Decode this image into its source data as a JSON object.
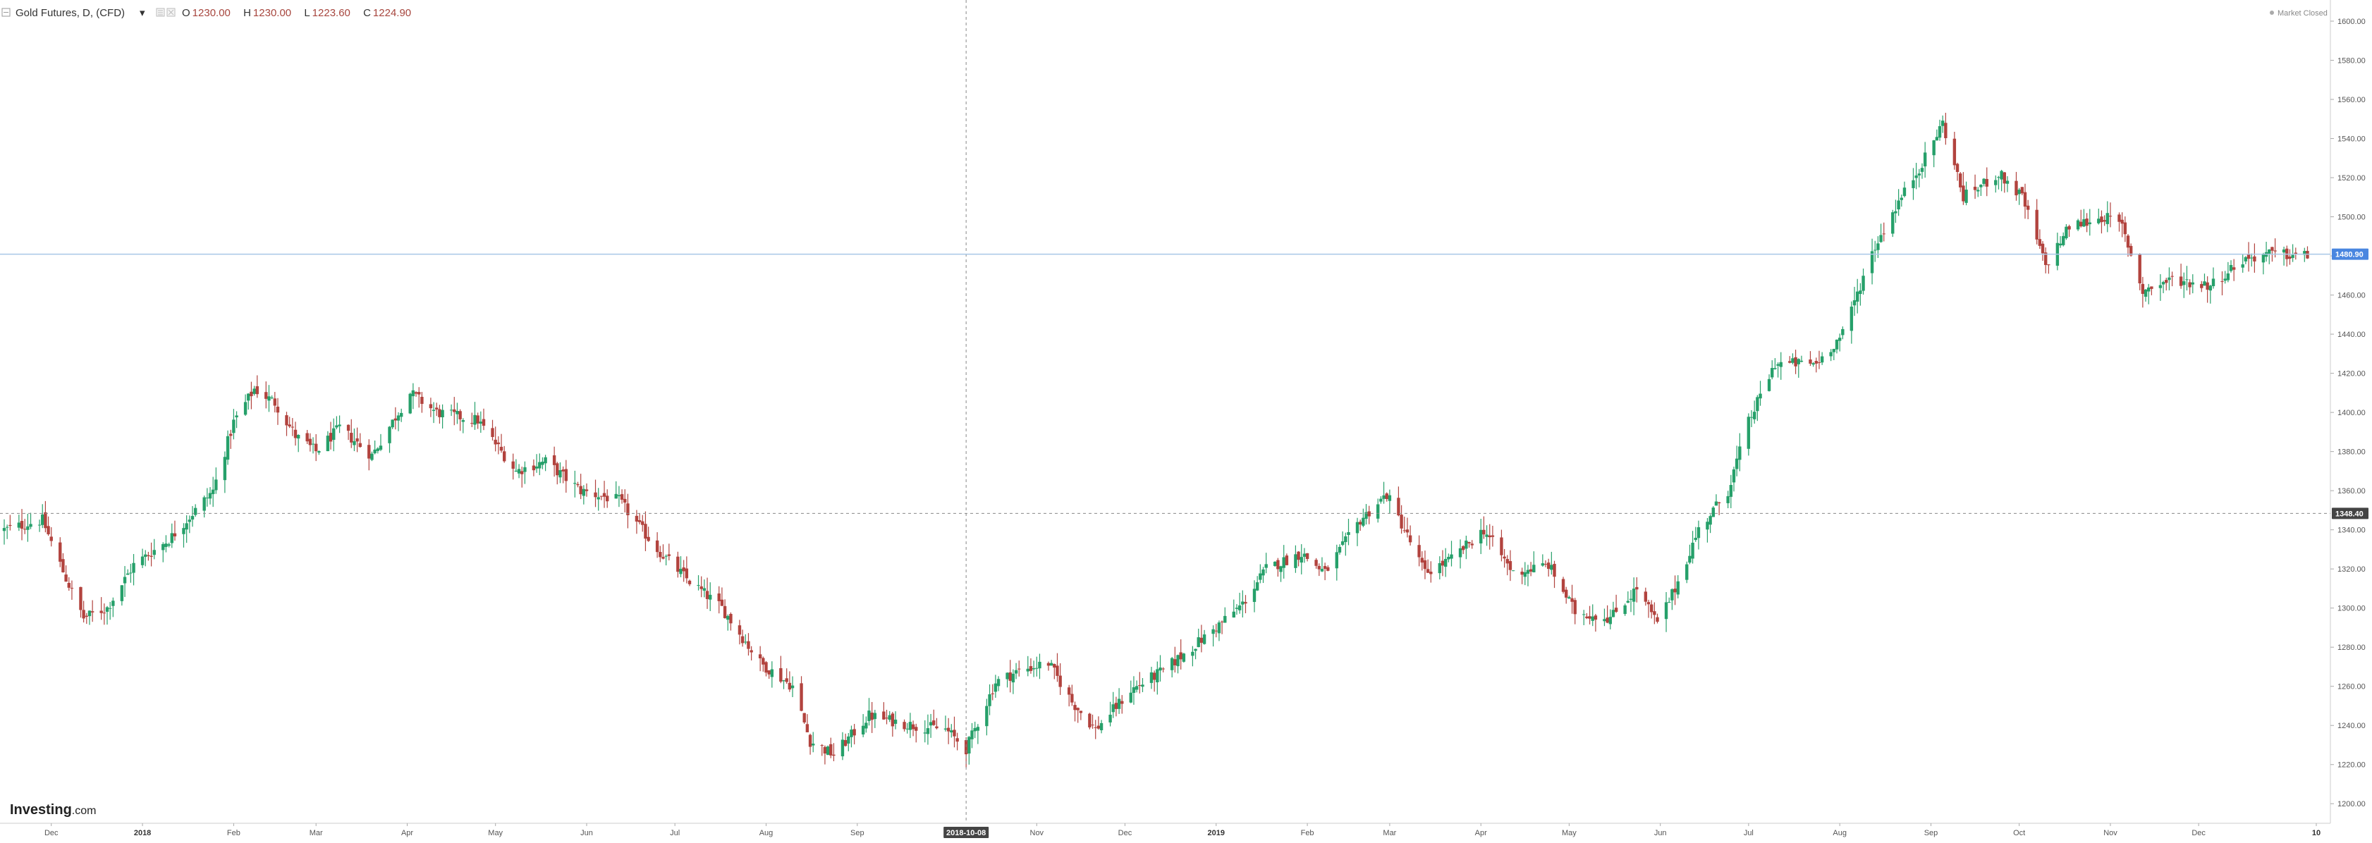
{
  "header": {
    "symbol": "Gold Futures, D, (CFD)",
    "open_label": "O",
    "open_value": "1230.00",
    "high_label": "H",
    "high_value": "1230.00",
    "low_label": "L",
    "low_value": "1223.60",
    "close_label": "C",
    "close_value": "1224.90",
    "market_status": "Market Closed"
  },
  "logo": {
    "brand": "Investing",
    "domain": ".com"
  },
  "crosshair": {
    "date_label": "2018-10-08",
    "price_label": "1348.40"
  },
  "last_price": {
    "label": "1480.90",
    "value": 1480.9
  },
  "colors": {
    "up": "#26a06a",
    "down": "#b2433e",
    "last_price_line": "#a9c7e6",
    "last_price_badge": "#4a86e0",
    "crosshair_badge": "#444444",
    "axis": "#999999"
  },
  "chart_data": {
    "type": "candlestick",
    "title": "Gold Futures, D, (CFD)",
    "y_axis_position": "right",
    "ylim": [
      1190,
      1600
    ],
    "yticks": [
      1200,
      1220,
      1240,
      1260,
      1280,
      1300,
      1320,
      1340,
      1360,
      1380,
      1400,
      1420,
      1440,
      1460,
      1480,
      1500,
      1520,
      1540,
      1560,
      1580,
      1600
    ],
    "ytick_labels": [
      "1200.00",
      "1220.00",
      "1240.00",
      "1260.00",
      "1280.00",
      "1300.00",
      "1320.00",
      "1340.00",
      "1360.00",
      "1380.00",
      "1400.00",
      "1420.00",
      "1440.00",
      "1460.00",
      "1480.00",
      "1500.00",
      "1520.00",
      "1540.00",
      "1560.00",
      "1580.00",
      "1600.00"
    ],
    "xlim": [
      "2017-11-15",
      "2020-01-10"
    ],
    "xticks": [
      {
        "label": "Dec",
        "date": "2017-12-01"
      },
      {
        "label": "2018",
        "date": "2018-01-01",
        "bold": true
      },
      {
        "label": "Feb",
        "date": "2018-02-01"
      },
      {
        "label": "Mar",
        "date": "2018-03-01"
      },
      {
        "label": "Apr",
        "date": "2018-04-01"
      },
      {
        "label": "May",
        "date": "2018-05-01"
      },
      {
        "label": "Jun",
        "date": "2018-06-01"
      },
      {
        "label": "Jul",
        "date": "2018-07-01"
      },
      {
        "label": "Aug",
        "date": "2018-08-01"
      },
      {
        "label": "Sep",
        "date": "2018-09-01"
      },
      {
        "label": "Nov",
        "date": "2018-11-01"
      },
      {
        "label": "Dec",
        "date": "2018-12-01"
      },
      {
        "label": "2019",
        "date": "2019-01-01",
        "bold": true
      },
      {
        "label": "Feb",
        "date": "2019-02-01"
      },
      {
        "label": "Mar",
        "date": "2019-03-01"
      },
      {
        "label": "Apr",
        "date": "2019-04-01"
      },
      {
        "label": "May",
        "date": "2019-05-01"
      },
      {
        "label": "Jun",
        "date": "2019-06-01"
      },
      {
        "label": "Jul",
        "date": "2019-07-01"
      },
      {
        "label": "Aug",
        "date": "2019-08-01"
      },
      {
        "label": "Sep",
        "date": "2019-09-01"
      },
      {
        "label": "Oct",
        "date": "2019-10-01"
      },
      {
        "label": "Nov",
        "date": "2019-11-01"
      },
      {
        "label": "Dec",
        "date": "2019-12-01"
      },
      {
        "label": "10",
        "date": "2020-01-10",
        "bold": true
      }
    ],
    "crosshair_date": "2018-10-08",
    "crosshair_price": 1348.4,
    "last_price": 1480.9,
    "grid": false,
    "legend": "none",
    "series_anchors": [
      [
        "2017-11-15",
        1340
      ],
      [
        "2017-11-28",
        1345
      ],
      [
        "2017-12-06",
        1315
      ],
      [
        "2017-12-12",
        1295
      ],
      [
        "2017-12-20",
        1300
      ],
      [
        "2017-12-29",
        1322
      ],
      [
        "2018-01-10",
        1335
      ],
      [
        "2018-01-25",
        1360
      ],
      [
        "2018-02-01",
        1395
      ],
      [
        "2018-02-08",
        1412
      ],
      [
        "2018-02-15",
        1405
      ],
      [
        "2018-02-22",
        1388
      ],
      [
        "2018-03-01",
        1380
      ],
      [
        "2018-03-09",
        1392
      ],
      [
        "2018-03-20",
        1378
      ],
      [
        "2018-04-02",
        1410
      ],
      [
        "2018-04-11",
        1400
      ],
      [
        "2018-04-25",
        1396
      ],
      [
        "2018-05-08",
        1370
      ],
      [
        "2018-05-18",
        1375
      ],
      [
        "2018-05-30",
        1360
      ],
      [
        "2018-06-12",
        1355
      ],
      [
        "2018-06-25",
        1330
      ],
      [
        "2018-07-05",
        1315
      ],
      [
        "2018-07-17",
        1300
      ],
      [
        "2018-07-30",
        1272
      ],
      [
        "2018-08-10",
        1260
      ],
      [
        "2018-08-16",
        1232
      ],
      [
        "2018-08-24",
        1225
      ],
      [
        "2018-09-05",
        1245
      ],
      [
        "2018-09-20",
        1240
      ],
      [
        "2018-10-01",
        1238
      ],
      [
        "2018-10-08",
        1228
      ],
      [
        "2018-10-18",
        1262
      ],
      [
        "2018-10-26",
        1268
      ],
      [
        "2018-11-05",
        1272
      ],
      [
        "2018-11-13",
        1252
      ],
      [
        "2018-11-21",
        1238
      ],
      [
        "2018-12-03",
        1258
      ],
      [
        "2018-12-14",
        1268
      ],
      [
        "2018-12-28",
        1285
      ],
      [
        "2019-01-10",
        1302
      ],
      [
        "2019-01-18",
        1320
      ],
      [
        "2019-01-30",
        1328
      ],
      [
        "2019-02-07",
        1318
      ],
      [
        "2019-02-19",
        1345
      ],
      [
        "2019-02-28",
        1358
      ],
      [
        "2019-03-06",
        1340
      ],
      [
        "2019-03-13",
        1318
      ],
      [
        "2019-03-22",
        1325
      ],
      [
        "2019-04-02",
        1340
      ],
      [
        "2019-04-12",
        1318
      ],
      [
        "2019-04-24",
        1322
      ],
      [
        "2019-05-03",
        1298
      ],
      [
        "2019-05-15",
        1295
      ],
      [
        "2019-05-24",
        1310
      ],
      [
        "2019-05-31",
        1292
      ],
      [
        "2019-06-06",
        1310
      ],
      [
        "2019-06-14",
        1340
      ],
      [
        "2019-06-24",
        1360
      ],
      [
        "2019-07-01",
        1395
      ],
      [
        "2019-07-10",
        1425
      ],
      [
        "2019-07-24",
        1425
      ],
      [
        "2019-08-02",
        1440
      ],
      [
        "2019-08-12",
        1482
      ],
      [
        "2019-08-20",
        1505
      ],
      [
        "2019-08-30",
        1530
      ],
      [
        "2019-09-05",
        1548
      ],
      [
        "2019-09-12",
        1510
      ],
      [
        "2019-09-24",
        1522
      ],
      [
        "2019-10-02",
        1510
      ],
      [
        "2019-10-10",
        1475
      ],
      [
        "2019-10-18",
        1495
      ],
      [
        "2019-10-30",
        1500
      ],
      [
        "2019-11-05",
        1495
      ],
      [
        "2019-11-12",
        1462
      ],
      [
        "2019-11-22",
        1468
      ],
      [
        "2019-12-05",
        1465
      ],
      [
        "2019-12-16",
        1478
      ],
      [
        "2019-12-24",
        1481
      ],
      [
        "2020-01-07",
        1480
      ]
    ]
  }
}
